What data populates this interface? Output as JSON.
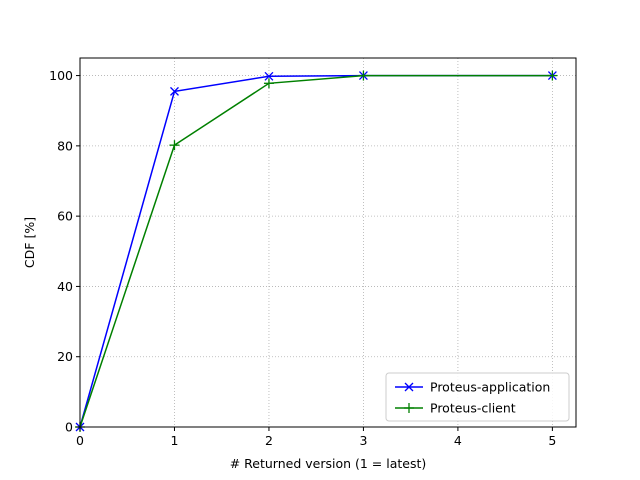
{
  "chart_data": {
    "type": "line",
    "title": "",
    "xlabel": "# Returned version (1 = latest)",
    "ylabel": "CDF [%]",
    "xlim": [
      0,
      5.25
    ],
    "ylim": [
      0,
      105
    ],
    "xticks": [
      0,
      1,
      2,
      3,
      4,
      5
    ],
    "yticks": [
      0,
      20,
      40,
      60,
      80,
      100
    ],
    "grid": true,
    "legend_position": "lower-right",
    "series": [
      {
        "name": "Proteus-application",
        "color": "#0000ff",
        "marker": "x",
        "x": [
          0,
          1,
          2,
          3,
          5
        ],
        "y": [
          0,
          95.5,
          99.8,
          100,
          100
        ]
      },
      {
        "name": "Proteus-client",
        "color": "#008000",
        "marker": "+",
        "x": [
          0,
          1,
          2,
          3,
          5
        ],
        "y": [
          0,
          80.2,
          97.8,
          100,
          100
        ]
      }
    ]
  }
}
